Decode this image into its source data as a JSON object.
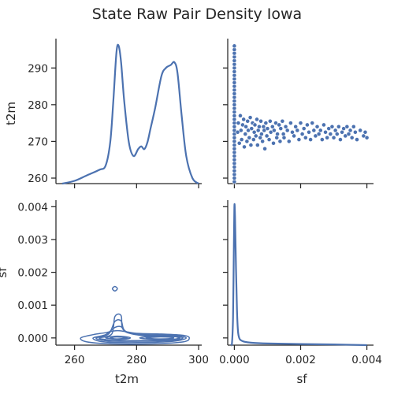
{
  "title": "State Raw Pair Density Iowa",
  "colors": {
    "series": "#4c72b0",
    "axis": "#262626",
    "marker_edge": "#ffffff"
  },
  "chart_data": [
    {
      "panel": "t2m vs t2m (diagonal)",
      "type": "area",
      "kind": "kde",
      "x": [
        256,
        260,
        264,
        268,
        270,
        271.5,
        272.5,
        273.5,
        274.2,
        275,
        276,
        277.5,
        279,
        280.5,
        281.5,
        282.5,
        283.5,
        284.5,
        286,
        288,
        289.5,
        291,
        292.2,
        293.2,
        294.5,
        296,
        298,
        300
      ],
      "density_rel": [
        0.0,
        0.02,
        0.06,
        0.1,
        0.13,
        0.3,
        0.6,
        0.95,
        1.0,
        0.88,
        0.6,
        0.3,
        0.2,
        0.25,
        0.27,
        0.25,
        0.3,
        0.4,
        0.55,
        0.78,
        0.84,
        0.86,
        0.88,
        0.8,
        0.5,
        0.2,
        0.04,
        0.0
      ],
      "xlim": [
        254,
        301
      ],
      "xticks": [
        "260",
        "280",
        "300"
      ]
    },
    {
      "panel": "t2m vs sf",
      "type": "scatter",
      "xlabel": "",
      "ylabel": "t2m",
      "xlim": [
        -0.0002,
        0.0042
      ],
      "ylim": [
        258.5,
        298
      ],
      "yticks": [
        "260",
        "270",
        "280",
        "290"
      ],
      "points": [
        [
          0.0,
          259
        ],
        [
          0.0,
          260
        ],
        [
          0.0,
          261
        ],
        [
          0.0,
          262
        ],
        [
          0.0,
          263
        ],
        [
          0.0,
          264
        ],
        [
          0.0,
          265
        ],
        [
          0.0,
          266
        ],
        [
          0.0,
          267
        ],
        [
          0.0,
          268
        ],
        [
          0.0,
          269
        ],
        [
          0.0,
          270
        ],
        [
          0.0,
          271
        ],
        [
          0.0,
          272
        ],
        [
          0.0,
          273
        ],
        [
          0.0,
          274
        ],
        [
          0.0,
          275
        ],
        [
          0.0,
          276
        ],
        [
          0.0,
          277
        ],
        [
          0.0,
          278
        ],
        [
          0.0,
          279
        ],
        [
          0.0,
          280
        ],
        [
          0.0,
          281
        ],
        [
          0.0,
          282
        ],
        [
          0.0,
          283
        ],
        [
          0.0,
          284
        ],
        [
          0.0,
          285
        ],
        [
          0.0,
          286
        ],
        [
          0.0,
          287
        ],
        [
          0.0,
          288
        ],
        [
          0.0,
          289
        ],
        [
          0.0,
          290
        ],
        [
          0.0,
          291
        ],
        [
          0.0,
          292
        ],
        [
          0.0,
          293
        ],
        [
          0.0,
          294
        ],
        [
          0.0,
          295
        ],
        [
          0.0,
          296
        ],
        [
          0.0001,
          272.5
        ],
        [
          0.00012,
          275
        ],
        [
          0.00015,
          269.5
        ],
        [
          0.00018,
          277
        ],
        [
          0.0002,
          273
        ],
        [
          0.00022,
          270.5
        ],
        [
          0.00025,
          274.5
        ],
        [
          0.00028,
          276
        ],
        [
          0.0003,
          268.5
        ],
        [
          0.00033,
          272
        ],
        [
          0.00035,
          274
        ],
        [
          0.00038,
          270
        ],
        [
          0.0004,
          275.5
        ],
        [
          0.00042,
          273
        ],
        [
          0.00045,
          271
        ],
        [
          0.00048,
          276.5
        ],
        [
          0.0005,
          269
        ],
        [
          0.00052,
          273.5
        ],
        [
          0.00055,
          275
        ],
        [
          0.00058,
          270.5
        ],
        [
          0.0006,
          272.5
        ],
        [
          0.00062,
          274.5
        ],
        [
          0.00065,
          271.5
        ],
        [
          0.00068,
          276
        ],
        [
          0.0007,
          269
        ],
        [
          0.00072,
          273
        ],
        [
          0.00075,
          274
        ],
        [
          0.00078,
          271
        ],
        [
          0.0008,
          275.5
        ],
        [
          0.00082,
          272
        ],
        [
          0.00085,
          270
        ],
        [
          0.00088,
          274
        ],
        [
          0.0009,
          273
        ],
        [
          0.00092,
          268
        ],
        [
          0.00095,
          275
        ],
        [
          0.00098,
          271.5
        ],
        [
          0.001,
          273.5
        ],
        [
          0.00105,
          270.5
        ],
        [
          0.00108,
          275.5
        ],
        [
          0.0011,
          272.5
        ],
        [
          0.00115,
          274
        ],
        [
          0.00118,
          269.5
        ],
        [
          0.0012,
          273
        ],
        [
          0.00125,
          275
        ],
        [
          0.00128,
          271
        ],
        [
          0.0013,
          272
        ],
        [
          0.00135,
          274.5
        ],
        [
          0.00138,
          270
        ],
        [
          0.0014,
          273.5
        ],
        [
          0.00145,
          275.5
        ],
        [
          0.00148,
          272
        ],
        [
          0.0015,
          271
        ],
        [
          0.00155,
          274
        ],
        [
          0.0016,
          273
        ],
        [
          0.00165,
          270
        ],
        [
          0.0017,
          275
        ],
        [
          0.00175,
          272.5
        ],
        [
          0.0018,
          271.5
        ],
        [
          0.00185,
          274
        ],
        [
          0.0019,
          273
        ],
        [
          0.00195,
          270.5
        ],
        [
          0.002,
          275
        ],
        [
          0.00205,
          272
        ],
        [
          0.0021,
          273.5
        ],
        [
          0.00215,
          271
        ],
        [
          0.0022,
          274.5
        ],
        [
          0.00225,
          272.5
        ],
        [
          0.0023,
          270.5
        ],
        [
          0.00235,
          275
        ],
        [
          0.0024,
          273
        ],
        [
          0.00245,
          271.5
        ],
        [
          0.0025,
          274
        ],
        [
          0.00255,
          272
        ],
        [
          0.0026,
          273
        ],
        [
          0.00265,
          270.5
        ],
        [
          0.0027,
          274.5
        ],
        [
          0.00275,
          272.5
        ],
        [
          0.0028,
          271
        ],
        [
          0.00285,
          273.5
        ],
        [
          0.0029,
          272
        ],
        [
          0.00295,
          274
        ],
        [
          0.003,
          271
        ],
        [
          0.00305,
          273
        ],
        [
          0.0031,
          272
        ],
        [
          0.00315,
          274
        ],
        [
          0.0032,
          270.5
        ],
        [
          0.00325,
          272.5
        ],
        [
          0.0033,
          273.5
        ],
        [
          0.00335,
          271.5
        ],
        [
          0.0034,
          274
        ],
        [
          0.00345,
          272
        ],
        [
          0.0035,
          273
        ],
        [
          0.00355,
          271
        ],
        [
          0.0036,
          274
        ],
        [
          0.00365,
          272.5
        ],
        [
          0.0037,
          270.5
        ],
        [
          0.0038,
          273
        ],
        [
          0.0039,
          271.5
        ],
        [
          0.00395,
          272.5
        ],
        [
          0.004,
          271
        ]
      ]
    },
    {
      "panel": "sf vs t2m",
      "type": "kde-contour",
      "xlabel": "t2m",
      "ylabel": "sf",
      "xlim": [
        254,
        301
      ],
      "ylim": [
        -0.00022,
        0.0042
      ],
      "xticks": [
        "260",
        "280",
        "300"
      ],
      "yticks": [
        "0.000",
        "0.001",
        "0.002",
        "0.003",
        "0.004"
      ],
      "contours": [
        [
          [
            262,
            0.0
          ],
          [
            266,
            0.0001
          ],
          [
            270,
            0.00016
          ],
          [
            274,
            0.00022
          ],
          [
            280,
            0.00014
          ],
          [
            288,
            0.00012
          ],
          [
            295,
            8e-05
          ],
          [
            297,
            0.0
          ],
          [
            295,
            -0.00012
          ],
          [
            285,
            -0.00018
          ],
          [
            272,
            -0.00018
          ],
          [
            264,
            -0.00012
          ]
        ],
        [
          [
            266,
            0.0
          ],
          [
            270,
            0.0001
          ],
          [
            273,
            0.00032
          ],
          [
            275,
            0.00034
          ],
          [
            277,
            0.00016
          ],
          [
            283,
            0.0001
          ],
          [
            292,
            8e-05
          ],
          [
            296,
            0.0
          ],
          [
            292,
            -0.0001
          ],
          [
            283,
            -0.00014
          ],
          [
            273,
            -0.00014
          ],
          [
            268,
            -0.0001
          ]
        ],
        [
          [
            267,
            0.0
          ],
          [
            271,
            0.00012
          ],
          [
            273,
            0.0005
          ],
          [
            275,
            0.00052
          ],
          [
            276.5,
            0.0002
          ],
          [
            283,
            8e-05
          ],
          [
            291,
            6e-05
          ],
          [
            295,
            0.0
          ],
          [
            291,
            -8e-05
          ],
          [
            282,
            -0.0001
          ],
          [
            273,
            -0.0001
          ],
          [
            269,
            -7e-05
          ]
        ],
        [
          [
            268,
            0.0
          ],
          [
            272,
            0.00012
          ],
          [
            273,
            0.00065
          ],
          [
            275,
            0.00068
          ],
          [
            276,
            0.00022
          ],
          [
            283,
            6e-05
          ],
          [
            291,
            5e-05
          ],
          [
            294,
            0.0
          ],
          [
            291,
            -6e-05
          ],
          [
            282,
            -8e-05
          ],
          [
            273,
            -8e-05
          ],
          [
            270,
            -5e-05
          ]
        ],
        [
          [
            270,
            0.0
          ],
          [
            273,
            5e-05
          ],
          [
            276,
            4e-05
          ],
          [
            278,
            0.0
          ],
          [
            276,
            -4e-05
          ],
          [
            273,
            -4e-05
          ]
        ],
        [
          [
            271.5,
            0.0
          ],
          [
            273.5,
            3e-05
          ],
          [
            275.5,
            2e-05
          ],
          [
            277,
            0.0
          ],
          [
            275.5,
            -2e-05
          ],
          [
            273.5,
            -3e-05
          ]
        ],
        [
          [
            281,
            0.0
          ],
          [
            286,
            5e-05
          ],
          [
            292,
            4e-05
          ],
          [
            293.5,
            0.0
          ],
          [
            292,
            -4e-05
          ],
          [
            286,
            -5e-05
          ]
        ],
        [
          [
            283,
            0.0
          ],
          [
            287,
            3e-05
          ],
          [
            291,
            2e-05
          ],
          [
            292,
            0.0
          ],
          [
            291,
            -2e-05
          ],
          [
            287,
            -3e-05
          ]
        ],
        [
          [
            272.2,
            0.0015
          ],
          [
            273,
            0.00157
          ],
          [
            273.8,
            0.0015
          ],
          [
            273,
            0.00143
          ]
        ]
      ]
    },
    {
      "panel": "sf vs sf (diagonal)",
      "type": "area",
      "kind": "kde",
      "xlabel": "sf",
      "xlim": [
        -0.0002,
        0.0042
      ],
      "xticks": [
        "0.000",
        "0.002",
        "0.004"
      ],
      "x": [
        -0.0001,
        -7e-05,
        -4e-05,
        -2e-05,
        0.0,
        2e-05,
        5e-05,
        8e-05,
        0.00011,
        0.00015,
        0.0002,
        0.0003,
        0.0005,
        0.001,
        0.002,
        0.003,
        0.004
      ],
      "density_rel": [
        0.0,
        0.02,
        0.2,
        0.6,
        1.0,
        0.93,
        0.55,
        0.25,
        0.1,
        0.05,
        0.035,
        0.025,
        0.018,
        0.012,
        0.008,
        0.005,
        0.0
      ]
    }
  ]
}
